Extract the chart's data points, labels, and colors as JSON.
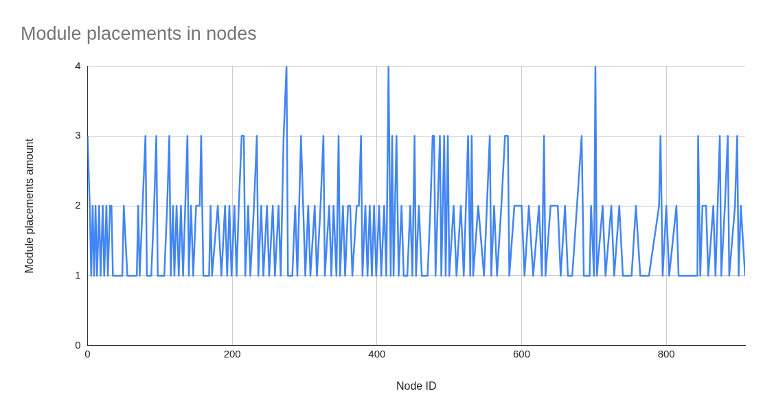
{
  "chart_data": {
    "type": "line",
    "title": "Module placements in nodes",
    "xlabel": "Node ID",
    "ylabel": "Module placements amount",
    "xlim": [
      0,
      909
    ],
    "xticks": [
      0,
      200,
      400,
      600,
      800
    ],
    "ylim": [
      0,
      4
    ],
    "yticks": [
      0,
      1,
      2,
      3,
      4
    ],
    "grid": true,
    "marker": "none",
    "series": [
      {
        "color": "#4285f4",
        "x": [
          0,
          3,
          5,
          7,
          9,
          11,
          13,
          16,
          18,
          21,
          23,
          26,
          28,
          31,
          33,
          35,
          48,
          50,
          55,
          68,
          70,
          72,
          76,
          80,
          82,
          88,
          92,
          95,
          97,
          106,
          110,
          113,
          115,
          118,
          120,
          123,
          126,
          129,
          132,
          135,
          138,
          140,
          143,
          146,
          150,
          155,
          157,
          160,
          168,
          170,
          172,
          180,
          185,
          190,
          193,
          196,
          199,
          203,
          206,
          209,
          213,
          216,
          218,
          222,
          225,
          230,
          234,
          236,
          240,
          243,
          248,
          251,
          256,
          259,
          264,
          267,
          271,
          275,
          277,
          283,
          287,
          290,
          295,
          298,
          301,
          305,
          308,
          314,
          317,
          322,
          326,
          328,
          334,
          337,
          340,
          344,
          347,
          349,
          353,
          356,
          360,
          363,
          366,
          372,
          375,
          378,
          380,
          384,
          387,
          390,
          393,
          396,
          399,
          403,
          406,
          410,
          413,
          416,
          419,
          421,
          423,
          427,
          430,
          434,
          437,
          442,
          446,
          449,
          452,
          454,
          458,
          462,
          470,
          474,
          477,
          479,
          481,
          484,
          487,
          489,
          493,
          495,
          498,
          500,
          506,
          510,
          516,
          520,
          526,
          529,
          531,
          533,
          540,
          548,
          556,
          558,
          562,
          566,
          572,
          577,
          581,
          583,
          590,
          600,
          604,
          610,
          616,
          624,
          628,
          631,
          633,
          640,
          650,
          654,
          660,
          664,
          670,
          683,
          686,
          694,
          696,
          700,
          702,
          704,
          712,
          716,
          724,
          728,
          735,
          740,
          752,
          758,
          764,
          776,
          790,
          792,
          795,
          800,
          804,
          814,
          817,
          843,
          844,
          847,
          850,
          855,
          858,
          865,
          868,
          874,
          876,
          881,
          885,
          887,
          895,
          898,
          900,
          903,
          909
        ],
        "values": [
          3,
          2,
          1,
          2,
          1,
          2,
          1,
          2,
          1,
          2,
          1,
          2,
          1,
          2,
          2,
          1,
          1,
          2,
          1,
          1,
          2,
          1,
          2,
          3,
          1,
          1,
          2,
          3,
          1,
          1,
          2,
          3,
          1,
          2,
          1,
          2,
          1,
          2,
          1,
          2,
          3,
          1,
          2,
          1,
          2,
          2,
          3,
          1,
          1,
          2,
          1,
          2,
          1,
          2,
          1,
          2,
          1,
          2,
          1,
          2,
          3,
          3,
          1,
          2,
          1,
          2,
          3,
          1,
          2,
          1,
          2,
          1,
          2,
          1,
          2,
          1,
          3,
          4,
          1,
          1,
          2,
          1,
          3,
          2,
          1,
          2,
          1,
          2,
          1,
          2,
          3,
          1,
          2,
          1,
          2,
          1,
          3,
          1,
          2,
          1,
          2,
          2,
          1,
          2,
          2,
          3,
          1,
          2,
          1,
          2,
          1,
          2,
          1,
          2,
          1,
          2,
          1,
          4,
          1,
          3,
          1,
          3,
          1,
          2,
          1,
          1,
          2,
          1,
          3,
          1,
          2,
          1,
          1,
          2,
          3,
          3,
          1,
          2,
          3,
          1,
          3,
          1,
          3,
          1,
          2,
          1,
          2,
          1,
          3,
          1,
          3,
          1,
          2,
          1,
          3,
          1,
          2,
          1,
          2,
          3,
          3,
          1,
          2,
          2,
          1,
          2,
          1,
          2,
          1,
          3,
          1,
          2,
          2,
          1,
          2,
          1,
          1,
          3,
          1,
          1,
          2,
          1,
          4,
          1,
          2,
          1,
          2,
          1,
          2,
          1,
          1,
          2,
          1,
          1,
          2,
          3,
          1,
          2,
          1,
          2,
          1,
          1,
          3,
          1,
          2,
          2,
          1,
          2,
          1,
          3,
          1,
          2,
          3,
          1,
          2,
          3,
          1,
          2,
          1
        ]
      }
    ]
  }
}
